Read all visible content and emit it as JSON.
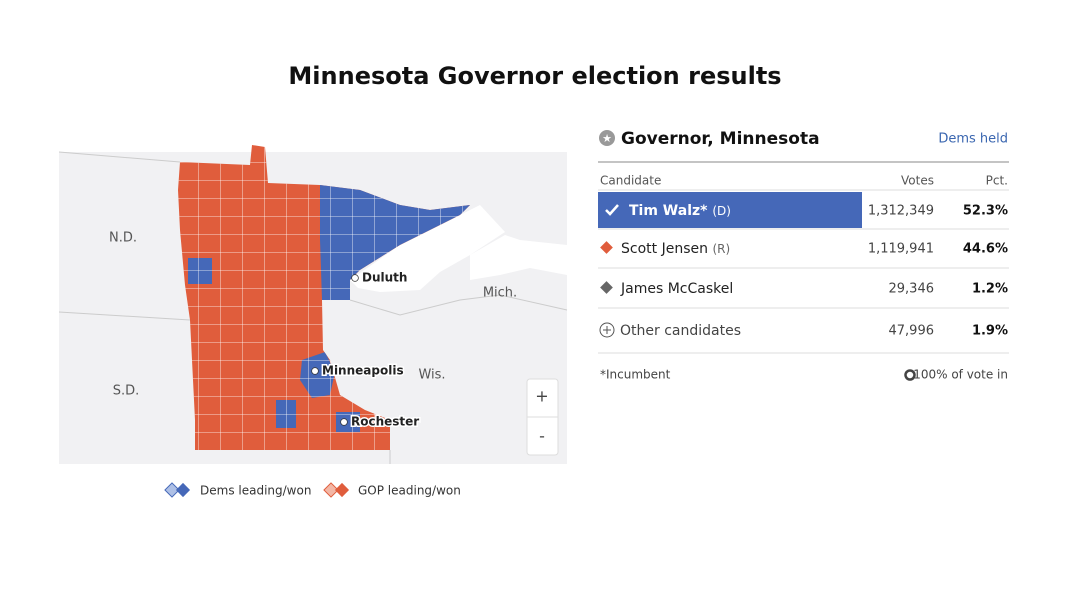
{
  "title": "Minnesota Governor election results",
  "map": {
    "states": [
      "N.D.",
      "S.D.",
      "Wis.",
      "Mich."
    ],
    "cities": [
      "Duluth",
      "Minneapolis",
      "Rochester"
    ],
    "zoom": [
      "+",
      "-"
    ]
  },
  "legend": [
    "Dems leading/won",
    "GOP leading/won"
  ],
  "race": {
    "title": "Governor, Minnesota",
    "status": "Dems held",
    "columns": [
      "Candidate",
      "Votes",
      "Pct."
    ],
    "rows": [
      {
        "name": "Tim Walz*",
        "party": "(D)",
        "votes": "1,312,349",
        "pct": "52.3%"
      },
      {
        "name": "Scott Jensen",
        "party": "(R)",
        "votes": "1,119,941",
        "pct": "44.6%"
      },
      {
        "name": "James McCaskel",
        "votes": "29,346",
        "pct": "1.2%"
      },
      {
        "name": "Other candidates",
        "votes": "47,996",
        "pct": "1.9%"
      }
    ],
    "note": "*Incumbent",
    "reporting": "100% of vote in"
  }
}
